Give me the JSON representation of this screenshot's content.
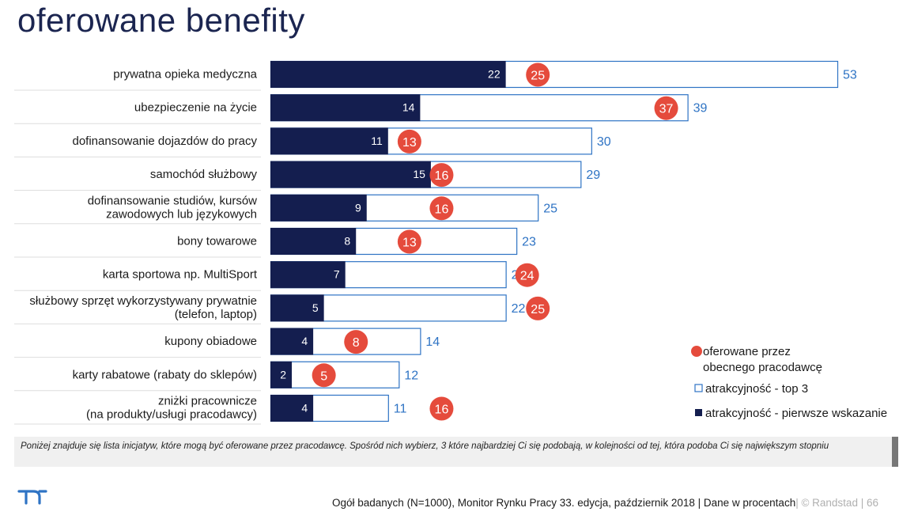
{
  "title": "oferowane benefity",
  "chart_data": {
    "type": "bar",
    "categories": [
      [
        "prywatna opieka medyczna"
      ],
      [
        "ubezpieczenie na życie"
      ],
      [
        "dofinansowanie dojazdów do pracy"
      ],
      [
        "samochód służbowy"
      ],
      [
        "dofinansowanie studiów, kursów",
        "zawodowych lub językowych"
      ],
      [
        "bony towarowe"
      ],
      [
        "karta sportowa np. MultiSport"
      ],
      [
        "służbowy sprzęt wykorzystywany prywatnie",
        "(telefon, laptop)"
      ],
      [
        "kupony obiadowe"
      ],
      [
        "karty rabatowe (rabaty do sklepów)"
      ],
      [
        "zniżki pracownicze",
        "(na produkty/usługi pracodawcy)"
      ]
    ],
    "series": [
      {
        "name": "atrakcyjność - pierwsze wskazanie",
        "values": [
          22,
          14,
          11,
          15,
          9,
          8,
          7,
          5,
          4,
          2,
          4
        ],
        "color": "#141e4f"
      },
      {
        "name": "atrakcyjność - top 3",
        "values": [
          53,
          39,
          30,
          29,
          25,
          23,
          22,
          22,
          14,
          12,
          11
        ],
        "color": "#2e73c4"
      },
      {
        "name": "oferowane przez obecnego pracodawcę",
        "values": [
          25,
          37,
          13,
          16,
          16,
          13,
          24,
          25,
          8,
          5,
          16
        ],
        "color": "#e54b3c"
      }
    ],
    "xlim": [
      0,
      53
    ]
  },
  "legend": {
    "offered_line1": "oferowane przez",
    "offered_line2": "obecnego pracodawcę",
    "top3": "atrakcyjność - top 3",
    "first": "atrakcyjność - pierwsze wskazanie"
  },
  "note": "Poniżej znajduje się lista inicjatyw, które mogą być oferowane przez pracodawcę. Spośród nich wybierz, 3 które najbardziej Ci się podobają, w kolejności od tej, która podoba Ci się największym stopniu",
  "footer": {
    "source": "Ogół badanych (N=1000), Monitor Rynku Pracy 33. edycja, październik 2018 | Dane w procentach",
    "copyright": "| © Randstad  | 66"
  },
  "colors": {
    "navy": "#141e4f",
    "blue": "#2e73c4",
    "red": "#e54b3c"
  }
}
